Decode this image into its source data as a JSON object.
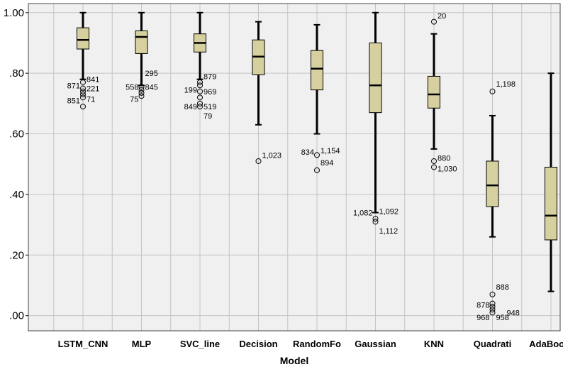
{
  "chart_data": {
    "type": "boxplot",
    "xlabel": "Model",
    "ylabel": "",
    "ylim": [
      -0.05,
      1.03
    ],
    "yticks": [
      0.0,
      0.2,
      0.4,
      0.6,
      0.8,
      1.0
    ],
    "ytick_labels": [
      ".00",
      ".20",
      ".40",
      ".60",
      ".80",
      "1.00"
    ],
    "grid": true,
    "colors": {
      "plot_bg": "#f0f0f0",
      "box_fill": "#d6cf9e",
      "grid": "#c4c4c4",
      "line": "#000000"
    },
    "categories": [
      "LSTM_CNN",
      "MLP",
      "SVC_line",
      "Decision",
      "RandomFo",
      "Gaussian",
      "KNN",
      "Quadrati",
      "AdaBoost"
    ],
    "boxes": [
      {
        "whisker_low": 0.78,
        "q1": 0.88,
        "median": 0.91,
        "q3": 0.95,
        "whisker_high": 1.0,
        "outliers": [
          0.77,
          0.75,
          0.74,
          0.73,
          0.72,
          0.69
        ],
        "outlier_labels": [
          {
            "text": "841",
            "y": 0.78,
            "side": "right"
          },
          {
            "text": "871",
            "y": 0.76,
            "side": "left"
          },
          {
            "text": "221",
            "y": 0.75,
            "side": "right"
          },
          {
            "text": "851",
            "y": 0.71,
            "side": "left"
          },
          {
            "text": "71",
            "y": 0.715,
            "side": "right"
          }
        ]
      },
      {
        "whisker_low": 0.76,
        "q1": 0.865,
        "median": 0.92,
        "q3": 0.94,
        "whisker_high": 1.0,
        "outliers": [
          0.755,
          0.745,
          0.735,
          0.725
        ],
        "outlier_labels": [
          {
            "text": "295",
            "y": 0.8,
            "side": "right"
          },
          {
            "text": "558",
            "y": 0.755,
            "side": "left"
          },
          {
            "text": "845",
            "y": 0.755,
            "side": "right"
          },
          {
            "text": "75",
            "y": 0.715,
            "side": "left"
          }
        ]
      },
      {
        "whisker_low": 0.78,
        "q1": 0.87,
        "median": 0.9,
        "q3": 0.93,
        "whisker_high": 1.0,
        "outliers": [
          0.77,
          0.76,
          0.74,
          0.72,
          0.7,
          0.69
        ],
        "outlier_labels": [
          {
            "text": "879",
            "y": 0.79,
            "side": "right"
          },
          {
            "text": "199",
            "y": 0.745,
            "side": "left"
          },
          {
            "text": "969",
            "y": 0.74,
            "side": "right"
          },
          {
            "text": "849",
            "y": 0.69,
            "side": "left"
          },
          {
            "text": "519",
            "y": 0.69,
            "side": "right"
          },
          {
            "text": "79",
            "y": 0.66,
            "side": "right"
          }
        ]
      },
      {
        "whisker_low": 0.63,
        "q1": 0.795,
        "median": 0.855,
        "q3": 0.91,
        "whisker_high": 0.97,
        "outliers": [
          0.51
        ],
        "outlier_labels": [
          {
            "text": "1,023",
            "y": 0.53,
            "side": "right"
          }
        ]
      },
      {
        "whisker_low": 0.6,
        "q1": 0.745,
        "median": 0.815,
        "q3": 0.875,
        "whisker_high": 0.96,
        "outliers": [
          0.53,
          0.48
        ],
        "outlier_labels": [
          {
            "text": "834",
            "y": 0.54,
            "side": "left"
          },
          {
            "text": "1,154",
            "y": 0.545,
            "side": "right"
          },
          {
            "text": "894",
            "y": 0.505,
            "side": "right"
          }
        ]
      },
      {
        "whisker_low": 0.34,
        "q1": 0.67,
        "median": 0.76,
        "q3": 0.9,
        "whisker_high": 1.0,
        "outliers": [
          0.32,
          0.31
        ],
        "outlier_labels": [
          {
            "text": "1,082",
            "y": 0.34,
            "side": "left"
          },
          {
            "text": "1,092",
            "y": 0.345,
            "side": "right"
          },
          {
            "text": "1,112",
            "y": 0.28,
            "side": "right"
          }
        ]
      },
      {
        "whisker_low": 0.55,
        "q1": 0.685,
        "median": 0.73,
        "q3": 0.79,
        "whisker_high": 0.93,
        "outliers": [
          0.97,
          0.51,
          0.49
        ],
        "outlier_labels": [
          {
            "text": "20",
            "y": 0.99,
            "side": "right"
          },
          {
            "text": "880",
            "y": 0.52,
            "side": "right"
          },
          {
            "text": "1,030",
            "y": 0.485,
            "side": "right"
          }
        ]
      },
      {
        "whisker_low": 0.26,
        "q1": 0.36,
        "median": 0.43,
        "q3": 0.51,
        "whisker_high": 0.66,
        "outliers": [
          0.74,
          0.07,
          0.04,
          0.03,
          0.02,
          0.01
        ],
        "outlier_labels": [
          {
            "text": "1,198",
            "y": 0.765,
            "side": "right"
          },
          {
            "text": "888",
            "y": 0.095,
            "side": "right"
          },
          {
            "text": "878",
            "y": 0.035,
            "side": "left"
          },
          {
            "text": "948",
            "y": 0.01,
            "side": "right-far"
          },
          {
            "text": "968",
            "y": -0.005,
            "side": "left"
          },
          {
            "text": "958",
            "y": -0.005,
            "side": "right"
          }
        ]
      },
      {
        "whisker_low": 0.08,
        "q1": 0.25,
        "median": 0.33,
        "q3": 0.49,
        "whisker_high": 0.8,
        "outliers": [],
        "outlier_labels": []
      }
    ]
  }
}
